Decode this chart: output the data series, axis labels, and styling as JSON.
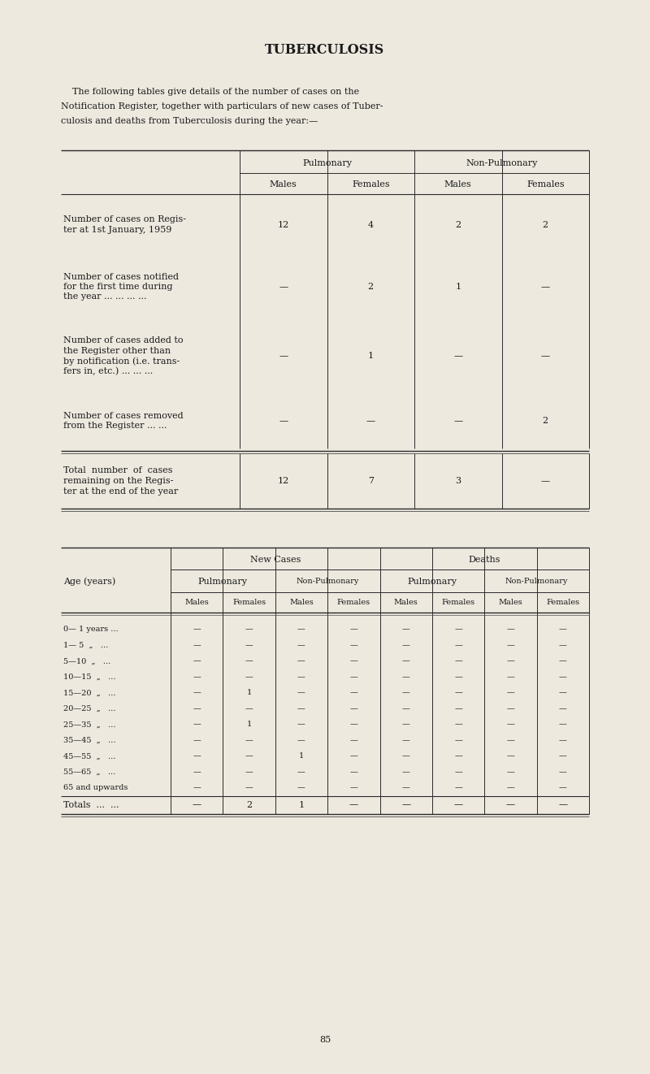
{
  "title": "TUBERCULOSIS",
  "bg_color": "#ede9df",
  "text_color": "#1a1a1a",
  "intro_lines": [
    "    The following tables give details of the number of cases on the",
    "Notification Register, together with particulars of new cases of Tuber-",
    "culosis and deaths from Tuberculosis during the year:—"
  ],
  "table1": {
    "rows": [
      {
        "label_lines": [
          "Number of cases on Regis-",
          "ter at 1st January, 1959"
        ],
        "values": [
          "12",
          "4",
          "2",
          "2"
        ]
      },
      {
        "label_lines": [
          "Number of cases notified",
          "for the first time during",
          "the year ... ... ... ..."
        ],
        "values": [
          "—",
          "2",
          "1",
          "—"
        ]
      },
      {
        "label_lines": [
          "Number of cases added to",
          "the Register other than",
          "by notification (i.e. trans-",
          "fers in, etc.) ... ... ..."
        ],
        "values": [
          "—",
          "1",
          "—",
          "—"
        ]
      },
      {
        "label_lines": [
          "Number of cases removed",
          "from the Register ... ..."
        ],
        "values": [
          "—",
          "—",
          "—",
          "2"
        ]
      }
    ],
    "total_row": {
      "label_lines": [
        "Total  number  of  cases",
        "remaining on the Regis-",
        "ter at the end of the year"
      ],
      "values": [
        "12",
        "7",
        "3",
        "—"
      ]
    }
  },
  "table2": {
    "age_rows": [
      {
        "label": "0— 1 years ...",
        "values": [
          "—",
          "—",
          "—",
          "—",
          "—",
          "—",
          "—",
          "—"
        ]
      },
      {
        "label": "1— 5  „   ...",
        "values": [
          "—",
          "—",
          "—",
          "—",
          "—",
          "—",
          "—",
          "—"
        ]
      },
      {
        "label": "5—10  „   ...",
        "values": [
          "—",
          "—",
          "—",
          "—",
          "—",
          "—",
          "—",
          "—"
        ]
      },
      {
        "label": "10—15  „   ...",
        "values": [
          "—",
          "—",
          "—",
          "—",
          "—",
          "—",
          "—",
          "—"
        ]
      },
      {
        "label": "15—20  „   ...",
        "values": [
          "—",
          "1",
          "—",
          "—",
          "—",
          "—",
          "—",
          "—"
        ]
      },
      {
        "label": "20—25  „   ...",
        "values": [
          "—",
          "—",
          "—",
          "—",
          "—",
          "—",
          "—",
          "—"
        ]
      },
      {
        "label": "25—35  „   ...",
        "values": [
          "—",
          "1",
          "—",
          "—",
          "—",
          "—",
          "—",
          "—"
        ]
      },
      {
        "label": "35—45  „   ...",
        "values": [
          "—",
          "—",
          "—",
          "—",
          "—",
          "—",
          "—",
          "—"
        ]
      },
      {
        "label": "45—55  „   ...",
        "values": [
          "—",
          "—",
          "1",
          "—",
          "—",
          "—",
          "—",
          "—"
        ]
      },
      {
        "label": "55—65  „   ...",
        "values": [
          "—",
          "—",
          "—",
          "—",
          "—",
          "—",
          "—",
          "—"
        ]
      },
      {
        "label": "65 and upwards",
        "values": [
          "—",
          "—",
          "—",
          "—",
          "—",
          "—",
          "—",
          "—"
        ]
      }
    ],
    "totals_row": {
      "label": "Totals  ...  ...",
      "values": [
        "—",
        "2",
        "1",
        "—",
        "—",
        "—",
        "—",
        "—"
      ]
    }
  },
  "page_number": "85",
  "fs_title": 11.5,
  "fs_body": 8.0,
  "fs_small": 7.0
}
